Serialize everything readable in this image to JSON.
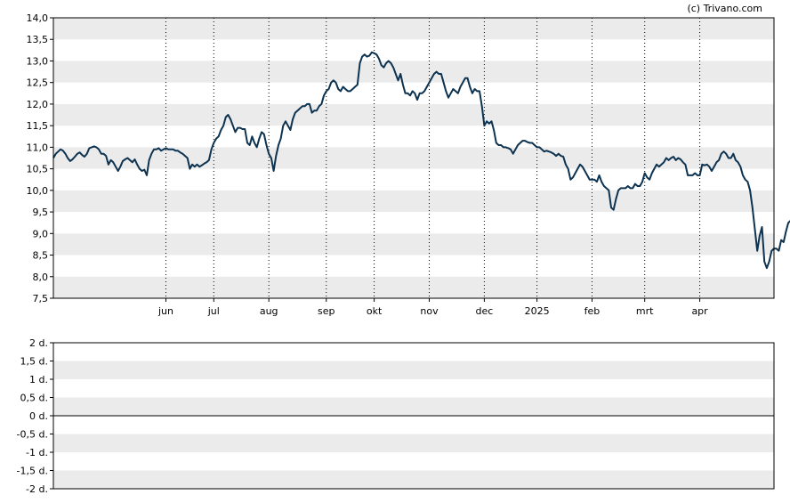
{
  "credit": "(c) Trivano.com",
  "colors": {
    "line": "#0d3350",
    "band": "#ebebeb",
    "axis": "#000000",
    "grid": "#000000",
    "background": "#ffffff"
  },
  "chart_data": [
    {
      "type": "line",
      "title": "",
      "xlabel": "",
      "ylabel": "",
      "ylim": [
        7.5,
        14.0
      ],
      "y_ticks": [
        "7,5",
        "8,0",
        "8,5",
        "9,0",
        "9,5",
        "10,0",
        "10,5",
        "11,0",
        "11,5",
        "12,0",
        "12,5",
        "13,0",
        "13,5",
        "14,0"
      ],
      "x_ticks": [
        "jun",
        "jul",
        "aug",
        "sep",
        "okt",
        "nov",
        "dec",
        "2025",
        "feb",
        "mrt",
        "apr"
      ],
      "x_tick_index": [
        47,
        67,
        90,
        114,
        134,
        157,
        180,
        202,
        225,
        247,
        270
      ],
      "x_range": [
        0,
        301
      ],
      "grid": "alternating horizontal bands, dotted vertical lines at month ticks",
      "series": [
        {
          "values": [
            10.75,
            10.85,
            10.9,
            10.95,
            10.92,
            10.85,
            10.75,
            10.68,
            10.72,
            10.78,
            10.85,
            10.88,
            10.82,
            10.78,
            10.85,
            10.98,
            11.0,
            11.02,
            11.0,
            10.95,
            10.85,
            10.85,
            10.8,
            10.6,
            10.7,
            10.65,
            10.55,
            10.45,
            10.55,
            10.68,
            10.72,
            10.75,
            10.7,
            10.65,
            10.72,
            10.6,
            10.5,
            10.45,
            10.48,
            10.35,
            10.7,
            10.85,
            10.95,
            10.95,
            10.98,
            10.92,
            10.95,
            10.98,
            10.95,
            10.95,
            10.95,
            10.92,
            10.92,
            10.88,
            10.85,
            10.8,
            10.75,
            10.5,
            10.6,
            10.55,
            10.6,
            10.55,
            10.58,
            10.62,
            10.65,
            10.7,
            10.95,
            11.1,
            11.2,
            11.25,
            11.4,
            11.5,
            11.7,
            11.75,
            11.65,
            11.5,
            11.35,
            11.45,
            11.45,
            11.42,
            11.42,
            11.1,
            11.05,
            11.25,
            11.1,
            11.0,
            11.2,
            11.35,
            11.3,
            11.05,
            10.85,
            10.75,
            10.45,
            10.8,
            11.05,
            11.2,
            11.5,
            11.6,
            11.5,
            11.4,
            11.65,
            11.8,
            11.85,
            11.9,
            11.95,
            11.95,
            12.0,
            12.0,
            11.8,
            11.85,
            11.85,
            11.95,
            12.0,
            12.2,
            12.3,
            12.35,
            12.5,
            12.55,
            12.5,
            12.35,
            12.3,
            12.4,
            12.35,
            12.3,
            12.3,
            12.35,
            12.4,
            12.45,
            12.95,
            13.1,
            13.15,
            13.1,
            13.12,
            13.2,
            13.18,
            13.15,
            13.05,
            12.9,
            12.85,
            12.95,
            13.0,
            12.95,
            12.85,
            12.7,
            12.55,
            12.7,
            12.45,
            12.25,
            12.25,
            12.2,
            12.3,
            12.25,
            12.1,
            12.25,
            12.25,
            12.3,
            12.4,
            12.5,
            12.6,
            12.7,
            12.75,
            12.7,
            12.7,
            12.5,
            12.3,
            12.15,
            12.25,
            12.35,
            12.3,
            12.25,
            12.4,
            12.5,
            12.6,
            12.6,
            12.4,
            12.25,
            12.35,
            12.3,
            12.3,
            11.95,
            11.5,
            11.6,
            11.55,
            11.6,
            11.4,
            11.1,
            11.05,
            11.05,
            11.0,
            11.0,
            10.98,
            10.95,
            10.85,
            10.95,
            11.05,
            11.1,
            11.15,
            11.15,
            11.12,
            11.1,
            11.1,
            11.05,
            11.0,
            11.0,
            10.95,
            10.9,
            10.92,
            10.9,
            10.88,
            10.85,
            10.8,
            10.85,
            10.8,
            10.78,
            10.6,
            10.5,
            10.25,
            10.3,
            10.4,
            10.5,
            10.6,
            10.55,
            10.45,
            10.35,
            10.25,
            10.25,
            10.25,
            10.2,
            10.35,
            10.2,
            10.1,
            10.05,
            10.0,
            9.6,
            9.55,
            9.8,
            10.0,
            10.05,
            10.05,
            10.05,
            10.1,
            10.05,
            10.05,
            10.15,
            10.1,
            10.1,
            10.2,
            10.4,
            10.3,
            10.25,
            10.4,
            10.5,
            10.6,
            10.55,
            10.6,
            10.65,
            10.75,
            10.7,
            10.75,
            10.78,
            10.7,
            10.75,
            10.72,
            10.65,
            10.6,
            10.35,
            10.35,
            10.35,
            10.4,
            10.35,
            10.35,
            10.6,
            10.58,
            10.6,
            10.55,
            10.45,
            10.55,
            10.65,
            10.7,
            10.85,
            10.9,
            10.85,
            10.75,
            10.75,
            10.85,
            10.7,
            10.65,
            10.55,
            10.35,
            10.25,
            10.2,
            10.0,
            9.6,
            9.1,
            8.6,
            8.95,
            9.15,
            8.35,
            8.2,
            8.35,
            8.6,
            8.65,
            8.65,
            8.6,
            8.85,
            8.8,
            9.05,
            9.25,
            9.3,
            9.35,
            9.5,
            9.7,
            9.88,
            9.9,
            9.85
          ]
        }
      ]
    },
    {
      "type": "line",
      "title": "",
      "xlabel": "",
      "ylabel": "",
      "ylim": [
        -2,
        2
      ],
      "y_ticks": [
        "-2 d.",
        "-1,5 d.",
        "-1 d.",
        "-0,5 d.",
        "0 d.",
        "0,5 d.",
        "1 d.",
        "1,5 d.",
        "2 d."
      ],
      "grid": "alternating horizontal bands, zero line",
      "series": []
    }
  ]
}
